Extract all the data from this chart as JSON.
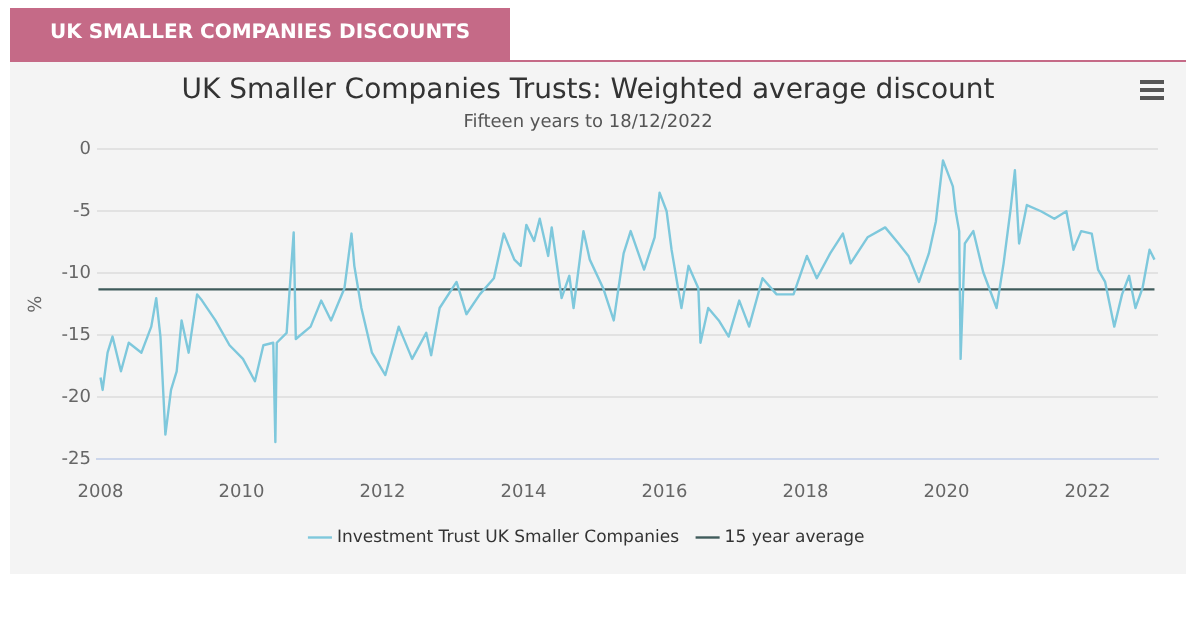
{
  "chart_data": {
    "type": "line",
    "title": "UK Smaller Companies Trusts: Weighted average discount",
    "subtitle": "Fifteen years to 18/12/2022",
    "ylabel": "%",
    "annotations": [
      "UK SMALLER COMPANIES DISCOUNTS"
    ],
    "xlim": [
      2007.95,
      2023.0
    ],
    "xticks": [
      2008,
      2010,
      2012,
      2014,
      2016,
      2018,
      2020,
      2022
    ],
    "ylim": [
      -25,
      0
    ],
    "yticks": [
      -25,
      -20,
      -15,
      -10,
      -5,
      0
    ],
    "grid": "y",
    "legend": "bottom",
    "marker": "none",
    "line_style": "solid",
    "series": [
      {
        "name": "Investment Trust UK Smaller Companies",
        "color": "#7ec8dc",
        "x": [
          2008.0,
          2008.03,
          2008.1,
          2008.17,
          2008.29,
          2008.4,
          2008.58,
          2008.72,
          2008.79,
          2008.85,
          2008.92,
          2009.0,
          2009.08,
          2009.15,
          2009.25,
          2009.37,
          2009.44,
          2009.63,
          2009.83,
          2010.02,
          2010.19,
          2010.31,
          2010.45,
          2010.48,
          2010.5,
          2010.64,
          2010.74,
          2010.77,
          2010.98,
          2011.13,
          2011.27,
          2011.46,
          2011.56,
          2011.6,
          2011.7,
          2011.85,
          2012.04,
          2012.23,
          2012.42,
          2012.62,
          2012.69,
          2012.81,
          2013.05,
          2013.19,
          2013.38,
          2013.58,
          2013.72,
          2013.87,
          2013.96,
          2014.04,
          2014.15,
          2014.23,
          2014.35,
          2014.4,
          2014.54,
          2014.65,
          2014.71,
          2014.85,
          2014.94,
          2015.13,
          2015.28,
          2015.42,
          2015.52,
          2015.71,
          2015.86,
          2015.93,
          2016.03,
          2016.1,
          2016.24,
          2016.34,
          2016.48,
          2016.51,
          2016.62,
          2016.77,
          2016.91,
          2017.06,
          2017.2,
          2017.39,
          2017.59,
          2017.83,
          2018.02,
          2018.16,
          2018.35,
          2018.53,
          2018.64,
          2018.88,
          2019.13,
          2019.32,
          2019.46,
          2019.61,
          2019.75,
          2019.85,
          2019.95,
          2020.09,
          2020.13,
          2020.18,
          2020.2,
          2020.26,
          2020.38,
          2020.52,
          2020.71,
          2020.81,
          2020.91,
          2020.97,
          2021.03,
          2021.14,
          2021.34,
          2021.53,
          2021.7,
          2021.8,
          2021.91,
          2022.06,
          2022.15,
          2022.25,
          2022.38,
          2022.49,
          2022.59,
          2022.68,
          2022.78,
          2022.88,
          2022.95
        ],
        "values": [
          -18.4,
          -19.4,
          -16.4,
          -15.1,
          -17.9,
          -15.6,
          -16.4,
          -14.3,
          -12.0,
          -15.1,
          -23.0,
          -19.4,
          -17.9,
          -13.8,
          -16.4,
          -11.7,
          -12.2,
          -13.8,
          -15.8,
          -16.9,
          -18.7,
          -15.8,
          -15.6,
          -23.6,
          -15.6,
          -14.8,
          -6.7,
          -15.3,
          -14.3,
          -12.2,
          -13.8,
          -11.2,
          -6.8,
          -9.4,
          -12.8,
          -16.4,
          -18.2,
          -14.3,
          -16.9,
          -14.8,
          -16.6,
          -12.8,
          -10.7,
          -13.3,
          -11.7,
          -10.4,
          -6.8,
          -8.9,
          -9.4,
          -6.1,
          -7.4,
          -5.6,
          -8.6,
          -6.3,
          -12.0,
          -10.2,
          -12.8,
          -6.6,
          -8.9,
          -11.2,
          -13.8,
          -8.4,
          -6.6,
          -9.7,
          -7.1,
          -3.5,
          -5.0,
          -8.1,
          -12.8,
          -9.4,
          -11.2,
          -15.6,
          -12.8,
          -13.8,
          -15.1,
          -12.2,
          -14.3,
          -10.4,
          -11.7,
          -11.7,
          -8.6,
          -10.4,
          -8.4,
          -6.8,
          -9.2,
          -7.1,
          -6.3,
          -7.6,
          -8.6,
          -10.7,
          -8.4,
          -5.8,
          -0.9,
          -3.0,
          -5.0,
          -6.6,
          -16.9,
          -7.6,
          -6.6,
          -9.9,
          -12.8,
          -9.2,
          -4.8,
          -1.7,
          -7.6,
          -4.5,
          -5.0,
          -5.6,
          -5.0,
          -8.1,
          -6.6,
          -6.8,
          -9.7,
          -10.7,
          -14.3,
          -11.7,
          -10.2,
          -12.8,
          -11.2,
          -8.1,
          -8.9
        ]
      },
      {
        "name": "15 year average",
        "color": "#3f5b5b",
        "x": [
          2007.97,
          2022.95
        ],
        "values": [
          -11.3,
          -11.3
        ]
      }
    ]
  }
}
